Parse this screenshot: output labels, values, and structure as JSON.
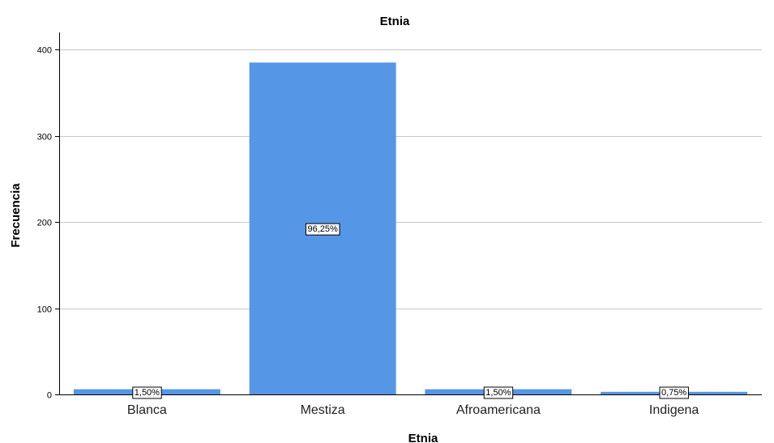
{
  "chart_data": {
    "type": "bar",
    "title": "Etnia",
    "xlabel": "Etnia",
    "ylabel": "Frecuencia",
    "categories": [
      "Blanca",
      "Mestiza",
      "Afroamericana",
      "Indigena"
    ],
    "values": [
      6,
      385,
      6,
      3
    ],
    "data_labels": [
      "1,50%",
      "96,25%",
      "1,50%",
      "0,75%"
    ],
    "ylim": [
      0,
      420
    ],
    "yticks": [
      0,
      100,
      200,
      300,
      400
    ],
    "grid": true,
    "bar_color": "#5596e6"
  }
}
